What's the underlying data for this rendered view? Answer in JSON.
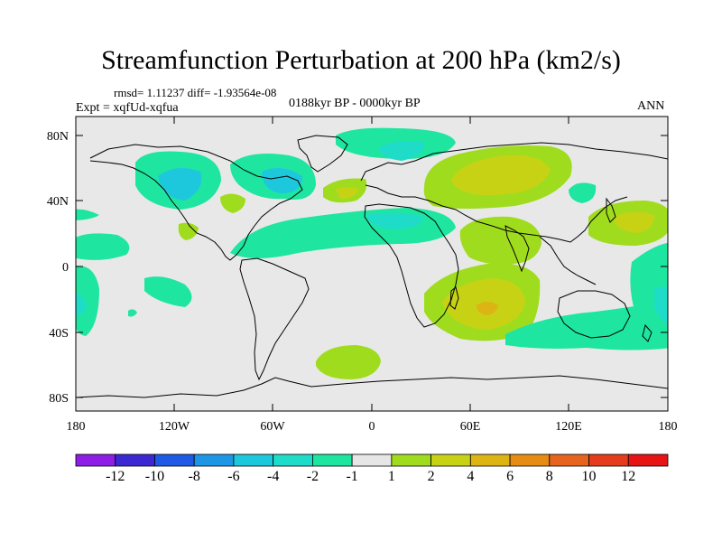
{
  "header": {
    "title": "Streamfunction Perturbation at 200 hPa (km2/s)",
    "stats": "rmsd= 1.11237 diff= -1.93564e-08",
    "experiment": "Expt = xqfUd-xqfua",
    "period": "0188kyr BP - 0000kyr BP",
    "season": "ANN"
  },
  "map": {
    "lat_labels": [
      "80N",
      "40N",
      "0",
      "40S",
      "80S"
    ],
    "lon_labels": [
      "180",
      "120W",
      "60W",
      "0",
      "60E",
      "120E",
      "180"
    ],
    "background_color": "#e8e8e8"
  },
  "colorbar": {
    "labels": [
      "-12",
      "-10",
      "-8",
      "-6",
      "-4",
      "-2",
      "-1",
      "1",
      "2",
      "4",
      "6",
      "8",
      "10",
      "12"
    ],
    "colors": [
      "#8c1ee6",
      "#3c28d2",
      "#1e5ae6",
      "#1e96e6",
      "#1ec8dc",
      "#1edcc8",
      "#1ee6a0",
      "#e6e6e6",
      "#a0dc1e",
      "#c8d214",
      "#dcb414",
      "#e68c14",
      "#e6641e",
      "#e63c1e",
      "#e61414"
    ]
  }
}
